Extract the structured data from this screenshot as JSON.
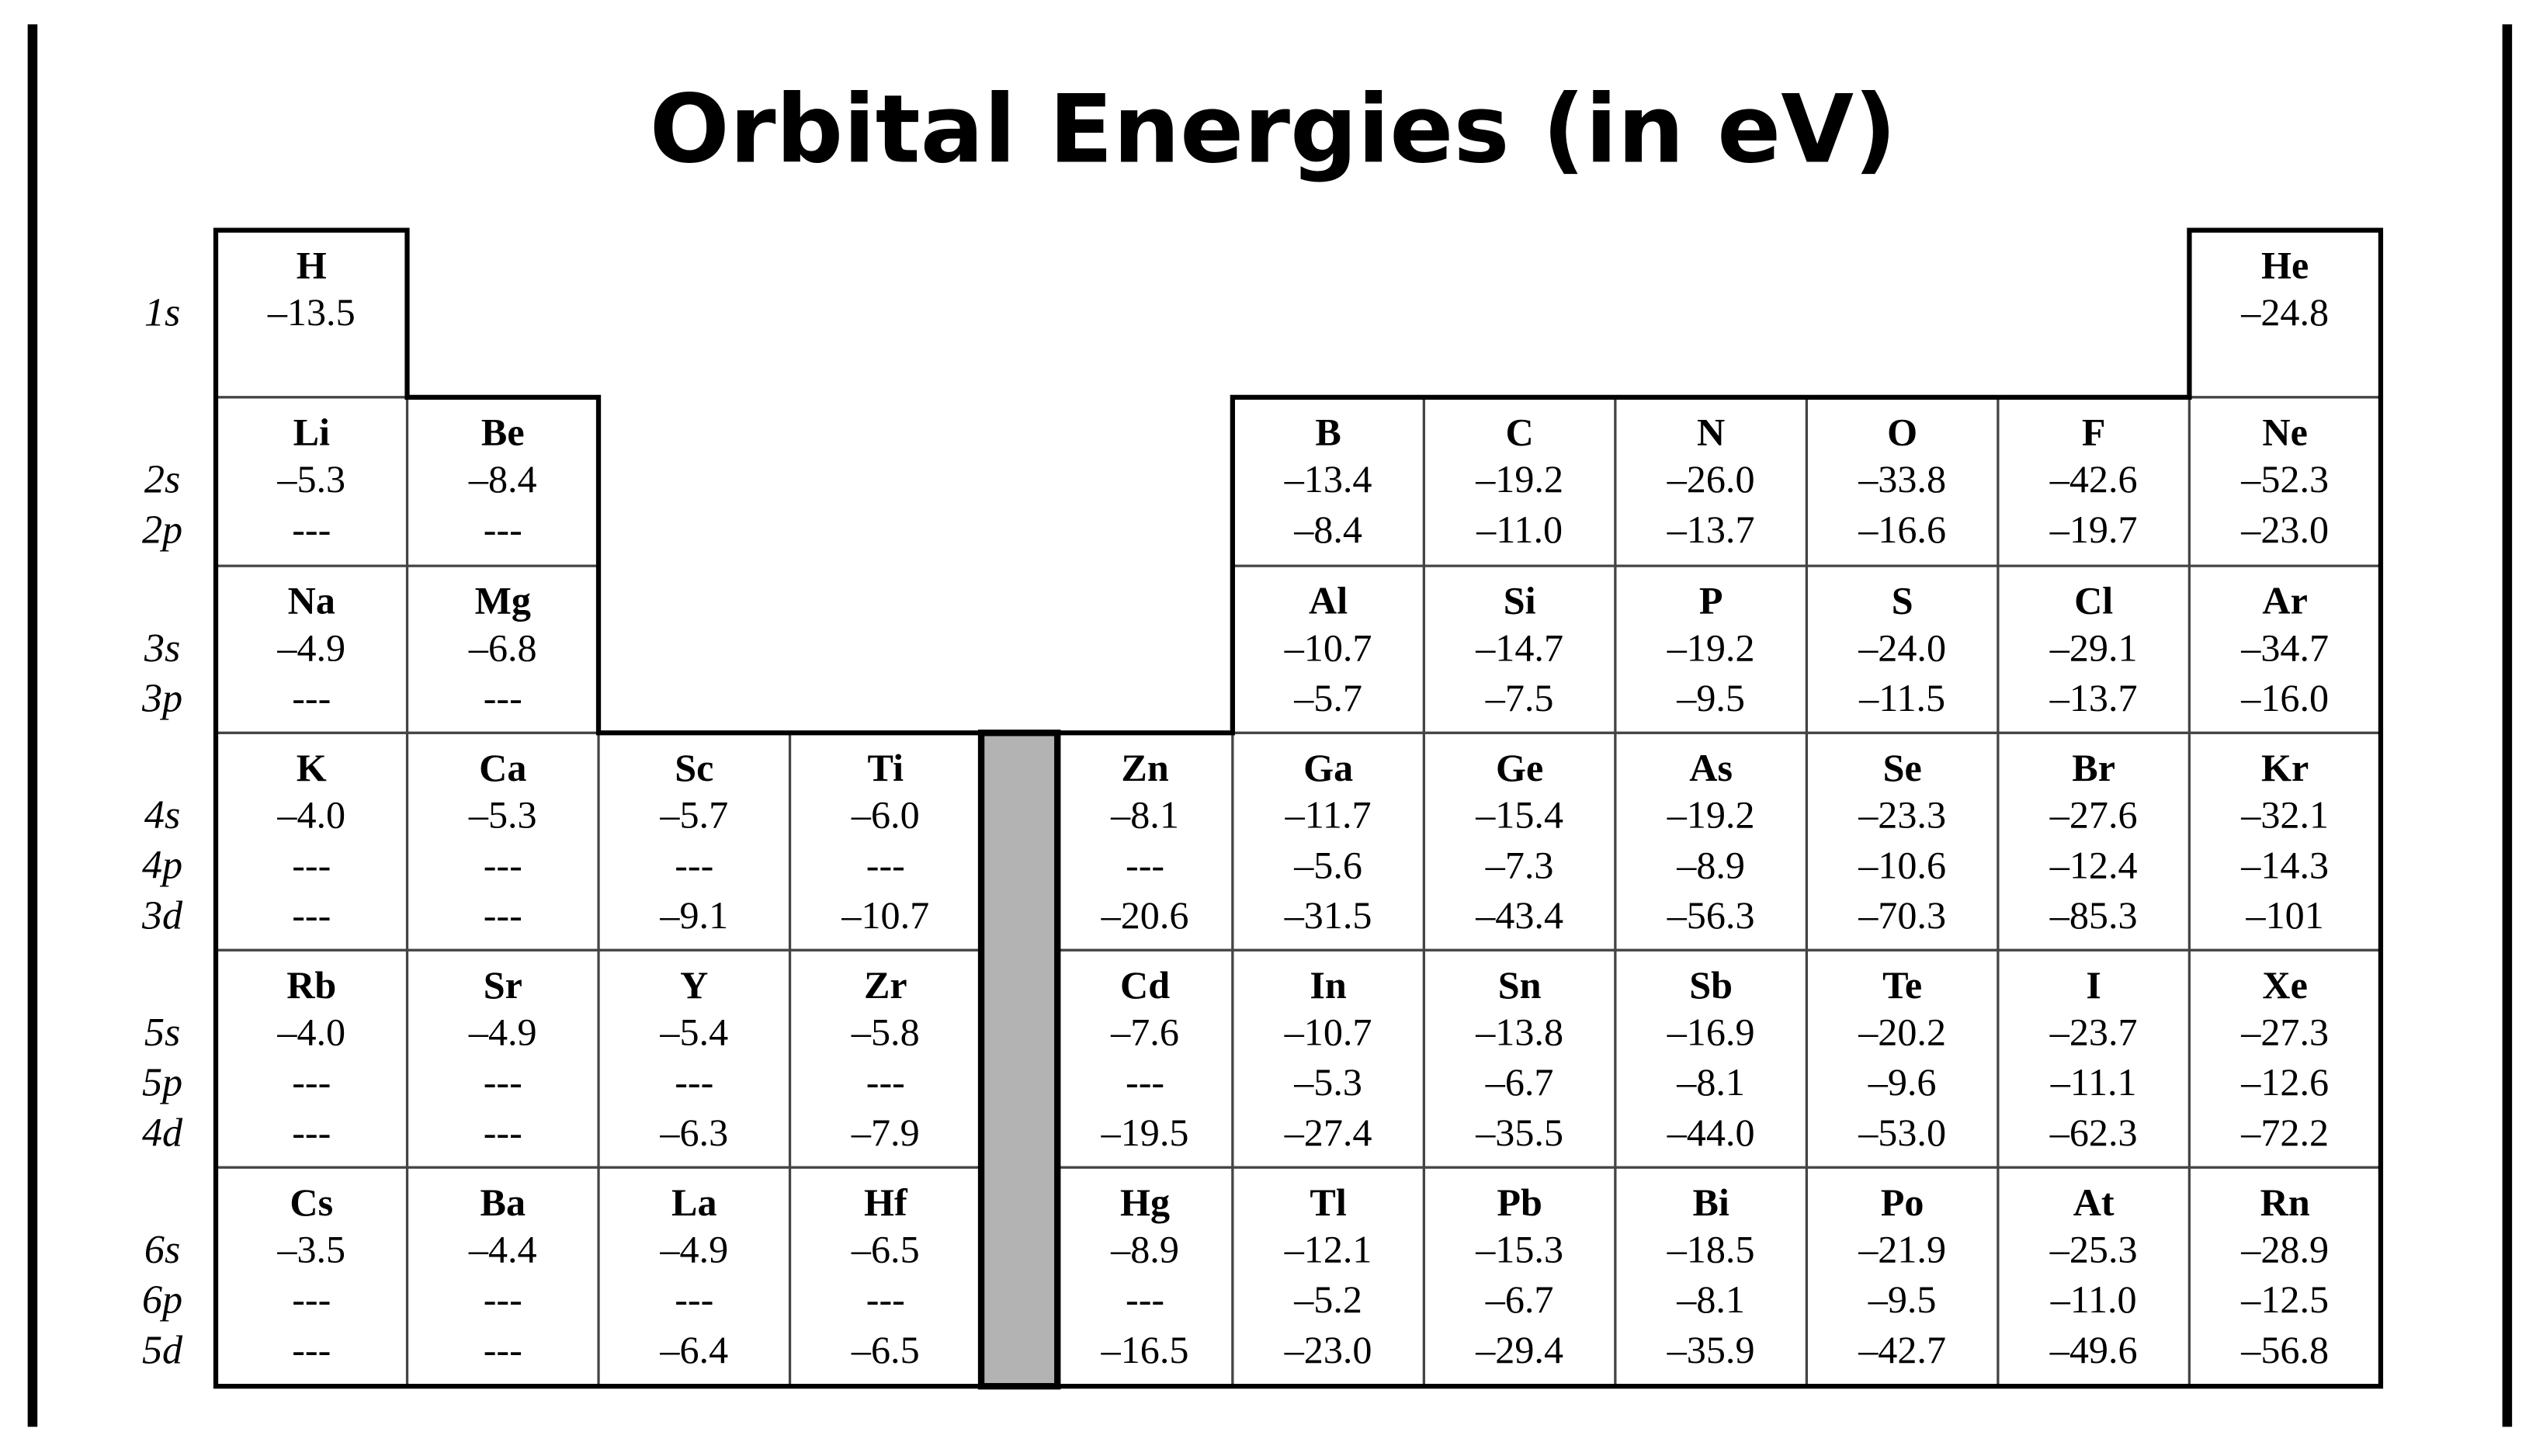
{
  "title": "Orbital Energies (in eV)",
  "periods": [
    {
      "orbitals": [
        "1s"
      ],
      "cells": [
        {
          "symbol": "H",
          "energies": [
            "–13.5"
          ]
        },
        null,
        null,
        null,
        null,
        null,
        null,
        null,
        null,
        null,
        {
          "symbol": "He",
          "energies": [
            "–24.8"
          ]
        }
      ]
    },
    {
      "orbitals": [
        "2s",
        "2p"
      ],
      "cells": [
        {
          "symbol": "Li",
          "energies": [
            "–5.3",
            "---"
          ]
        },
        {
          "symbol": "Be",
          "energies": [
            "–8.4",
            "---"
          ]
        },
        null,
        null,
        null,
        {
          "symbol": "B",
          "energies": [
            "–13.4",
            "–8.4"
          ]
        },
        {
          "symbol": "C",
          "energies": [
            "–19.2",
            "–11.0"
          ]
        },
        {
          "symbol": "N",
          "energies": [
            "–26.0",
            "–13.7"
          ]
        },
        {
          "symbol": "O",
          "energies": [
            "–33.8",
            "–16.6"
          ]
        },
        {
          "symbol": "F",
          "energies": [
            "–42.6",
            "–19.7"
          ]
        },
        {
          "symbol": "Ne",
          "energies": [
            "–52.3",
            "–23.0"
          ]
        }
      ]
    },
    {
      "orbitals": [
        "3s",
        "3p"
      ],
      "cells": [
        {
          "symbol": "Na",
          "energies": [
            "–4.9",
            "---"
          ]
        },
        {
          "symbol": "Mg",
          "energies": [
            "–6.8",
            "---"
          ]
        },
        null,
        null,
        null,
        {
          "symbol": "Al",
          "energies": [
            "–10.7",
            "–5.7"
          ]
        },
        {
          "symbol": "Si",
          "energies": [
            "–14.7",
            "–7.5"
          ]
        },
        {
          "symbol": "P",
          "energies": [
            "–19.2",
            "–9.5"
          ]
        },
        {
          "symbol": "S",
          "energies": [
            "–24.0",
            "–11.5"
          ]
        },
        {
          "symbol": "Cl",
          "energies": [
            "–29.1",
            "–13.7"
          ]
        },
        {
          "symbol": "Ar",
          "energies": [
            "–34.7",
            "–16.0"
          ]
        }
      ]
    },
    {
      "orbitals": [
        "4s",
        "4p",
        "3d"
      ],
      "cells": [
        {
          "symbol": "K",
          "energies": [
            "–4.0",
            "---",
            "---"
          ]
        },
        {
          "symbol": "Ca",
          "energies": [
            "–5.3",
            "---",
            "---"
          ]
        },
        {
          "symbol": "Sc",
          "energies": [
            "–5.7",
            "---",
            "–9.1"
          ]
        },
        {
          "symbol": "Ti",
          "energies": [
            "–6.0",
            "---",
            "–10.7"
          ]
        },
        {
          "symbol": "Zn",
          "energies": [
            "–8.1",
            "---",
            "–20.6"
          ]
        },
        {
          "symbol": "Ga",
          "energies": [
            "–11.7",
            "–5.6",
            "–31.5"
          ]
        },
        {
          "symbol": "Ge",
          "energies": [
            "–15.4",
            "–7.3",
            "–43.4"
          ]
        },
        {
          "symbol": "As",
          "energies": [
            "–19.2",
            "–8.9",
            "–56.3"
          ]
        },
        {
          "symbol": "Se",
          "energies": [
            "–23.3",
            "–10.6",
            "–70.3"
          ]
        },
        {
          "symbol": "Br",
          "energies": [
            "–27.6",
            "–12.4",
            "–85.3"
          ]
        },
        {
          "symbol": "Kr",
          "energies": [
            "–32.1",
            "–14.3",
            "–101"
          ]
        }
      ]
    },
    {
      "orbitals": [
        "5s",
        "5p",
        "4d"
      ],
      "cells": [
        {
          "symbol": "Rb",
          "energies": [
            "–4.0",
            "---",
            "---"
          ]
        },
        {
          "symbol": "Sr",
          "energies": [
            "–4.9",
            "---",
            "---"
          ]
        },
        {
          "symbol": "Y",
          "energies": [
            "–5.4",
            "---",
            "–6.3"
          ]
        },
        {
          "symbol": "Zr",
          "energies": [
            "–5.8",
            "---",
            "–7.9"
          ]
        },
        {
          "symbol": "Cd",
          "energies": [
            "–7.6",
            "---",
            "–19.5"
          ]
        },
        {
          "symbol": "In",
          "energies": [
            "–10.7",
            "–5.3",
            "–27.4"
          ]
        },
        {
          "symbol": "Sn",
          "energies": [
            "–13.8",
            "–6.7",
            "–35.5"
          ]
        },
        {
          "symbol": "Sb",
          "energies": [
            "–16.9",
            "–8.1",
            "–44.0"
          ]
        },
        {
          "symbol": "Te",
          "energies": [
            "–20.2",
            "–9.6",
            "–53.0"
          ]
        },
        {
          "symbol": "I",
          "energies": [
            "–23.7",
            "–11.1",
            "–62.3"
          ]
        },
        {
          "symbol": "Xe",
          "energies": [
            "–27.3",
            "–12.6",
            "–72.2"
          ]
        }
      ]
    },
    {
      "orbitals": [
        "6s",
        "6p",
        "5d"
      ],
      "cells": [
        {
          "symbol": "Cs",
          "energies": [
            "–3.5",
            "---",
            "---"
          ]
        },
        {
          "symbol": "Ba",
          "energies": [
            "–4.4",
            "---",
            "---"
          ]
        },
        {
          "symbol": "La",
          "energies": [
            "–4.9",
            "---",
            "–6.4"
          ]
        },
        {
          "symbol": "Hf",
          "energies": [
            "–6.5",
            "---",
            "–6.5"
          ]
        },
        {
          "symbol": "Hg",
          "energies": [
            "–8.9",
            "---",
            "–16.5"
          ]
        },
        {
          "symbol": "Tl",
          "energies": [
            "–12.1",
            "–5.2",
            "–23.0"
          ]
        },
        {
          "symbol": "Pb",
          "energies": [
            "–15.3",
            "–6.7",
            "–29.4"
          ]
        },
        {
          "symbol": "Bi",
          "energies": [
            "–18.5",
            "–8.1",
            "–35.9"
          ]
        },
        {
          "symbol": "Po",
          "energies": [
            "–21.9",
            "–9.5",
            "–42.7"
          ]
        },
        {
          "symbol": "At",
          "energies": [
            "–25.3",
            "–11.0",
            "–49.6"
          ]
        },
        {
          "symbol": "Rn",
          "energies": [
            "–28.9",
            "–12.5",
            "–56.8"
          ]
        }
      ]
    }
  ]
}
